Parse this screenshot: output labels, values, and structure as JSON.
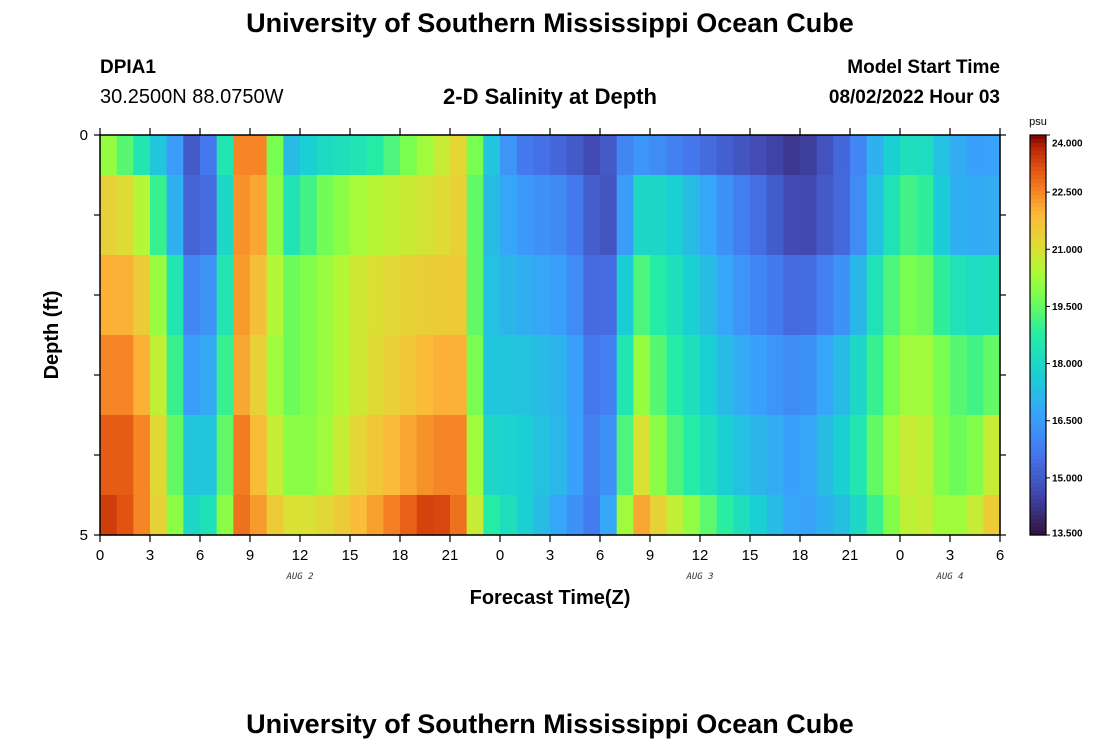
{
  "page": {
    "title": "University of Southern Mississippi Ocean Cube",
    "bottom_title": "University of Southern Mississippi Ocean Cube",
    "station_id": "DPIA1",
    "coordinates": "30.2500N  88.0750W",
    "model_start_label": "Model Start Time",
    "model_start_value": "08/02/2022 Hour 03"
  },
  "chart_data": {
    "type": "heatmap",
    "title": "2-D Salinity at Depth",
    "xlabel": "Forecast Time(Z)",
    "ylabel": "Depth (ft)",
    "x_tick_labels": [
      "0",
      "3",
      "6",
      "9",
      "12",
      "15",
      "18",
      "21",
      "0",
      "3",
      "6",
      "9",
      "12",
      "15",
      "18",
      "21",
      "0",
      "3",
      "6"
    ],
    "x_hours": [
      0,
      3,
      6,
      9,
      12,
      15,
      18,
      21,
      24,
      27,
      30,
      33,
      36,
      39,
      42,
      45,
      48,
      51,
      54
    ],
    "x_range": [
      0,
      54
    ],
    "date_labels": [
      {
        "text": "AUG 2",
        "hour": 12
      },
      {
        "text": "AUG 3",
        "hour": 36
      },
      {
        "text": "AUG 4",
        "hour": 51
      }
    ],
    "y_tick_labels": [
      "0",
      "5"
    ],
    "y_range": [
      0,
      5
    ],
    "depth_levels": [
      "0.0-0.5",
      "0.5-1.5",
      "1.5-2.5",
      "2.5-3.5",
      "3.5-4.5",
      "4.5-5.0"
    ],
    "colorbar": {
      "unit": "psu",
      "min": 13.5,
      "max": 24.0,
      "tick_labels": [
        "24.000",
        "22.500",
        "21.000",
        "19.500",
        "18.000",
        "16.500",
        "15.000",
        "13.500"
      ],
      "tick_values": [
        24.0,
        22.5,
        21.0,
        19.5,
        18.0,
        16.5,
        15.0,
        13.5
      ]
    },
    "salinity_keyframes_psu": {
      "hours": [
        0,
        2,
        3,
        4.5,
        5.5,
        7,
        7.5,
        8,
        10,
        11,
        13,
        16,
        20,
        22,
        23,
        25,
        28,
        30,
        31,
        32,
        34,
        38,
        42,
        45,
        47,
        49,
        51,
        53,
        54
      ],
      "levels": [
        [
          20.5,
          19.0,
          18.0,
          16.5,
          15.0,
          16.0,
          18.5,
          22.5,
          22.5,
          17.0,
          18.0,
          18.5,
          20.5,
          21.5,
          18.0,
          15.8,
          15.2,
          14.5,
          15.5,
          16.5,
          16.0,
          15.0,
          14.2,
          15.5,
          17.5,
          18.5,
          17.0,
          16.5,
          16.8
        ],
        [
          21.5,
          21.0,
          20.0,
          17.0,
          15.2,
          15.5,
          18.0,
          22.5,
          22.0,
          18.0,
          19.5,
          20.5,
          21.0,
          21.5,
          17.5,
          16.5,
          16.0,
          14.8,
          15.0,
          18.0,
          18.0,
          16.0,
          14.5,
          15.5,
          18.0,
          19.5,
          17.0,
          16.8,
          17.0
        ],
        [
          22.0,
          22.0,
          21.0,
          18.5,
          16.0,
          16.5,
          18.5,
          22.5,
          21.5,
          19.5,
          20.0,
          21.0,
          21.5,
          21.5,
          17.5,
          17.0,
          16.5,
          15.0,
          15.8,
          19.5,
          18.5,
          16.5,
          15.2,
          16.5,
          19.0,
          20.0,
          18.5,
          18.0,
          18.5
        ],
        [
          22.5,
          22.5,
          21.5,
          19.0,
          16.5,
          17.0,
          19.0,
          22.5,
          21.0,
          19.5,
          20.0,
          21.0,
          22.0,
          22.0,
          17.5,
          17.5,
          17.0,
          15.2,
          16.5,
          20.5,
          19.0,
          17.0,
          16.0,
          17.5,
          19.5,
          20.5,
          19.5,
          19.0,
          20.0
        ],
        [
          23.0,
          23.0,
          22.0,
          19.5,
          17.5,
          17.5,
          19.5,
          23.0,
          21.5,
          20.0,
          20.0,
          21.5,
          22.5,
          22.5,
          18.0,
          17.8,
          17.0,
          15.5,
          17.0,
          21.5,
          19.5,
          17.5,
          16.5,
          18.0,
          20.0,
          21.0,
          19.5,
          20.0,
          21.5
        ],
        [
          23.5,
          23.0,
          22.0,
          20.0,
          18.0,
          18.5,
          20.0,
          23.0,
          22.0,
          21.0,
          21.0,
          22.0,
          23.5,
          22.5,
          19.0,
          18.0,
          16.5,
          15.5,
          18.0,
          22.5,
          21.0,
          18.5,
          16.5,
          17.5,
          19.5,
          21.0,
          20.0,
          21.0,
          22.0
        ]
      ]
    }
  }
}
